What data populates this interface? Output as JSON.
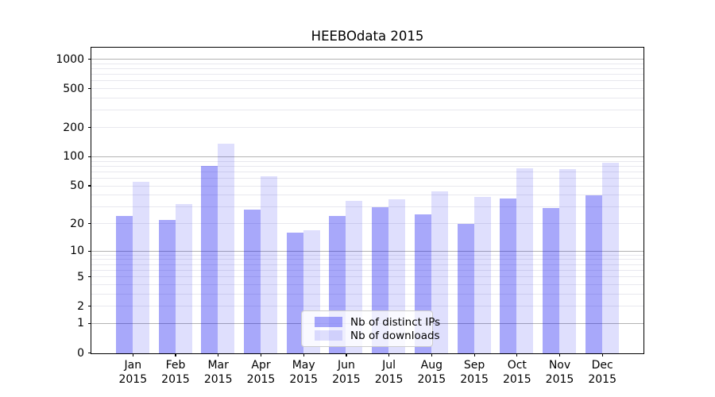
{
  "chart_data": {
    "type": "bar",
    "title": "HEEBOdata 2015",
    "categories": [
      "Jan",
      "Feb",
      "Mar",
      "Apr",
      "May",
      "Jun",
      "Jul",
      "Aug",
      "Sep",
      "Oct",
      "Nov",
      "Dec"
    ],
    "category_year": "2015",
    "series": [
      {
        "name": "Nb of distinct IPs",
        "color": "rgba(15,15,240,0.36)",
        "color_hex_on_white": "#a9a9fa",
        "values": [
          24,
          22,
          80,
          28,
          16,
          24,
          30,
          25,
          20,
          37,
          29,
          40
        ]
      },
      {
        "name": "Nb of downloads",
        "color": "rgba(15,15,240,0.135)",
        "color_hex_on_white": "#dfdffd",
        "values": [
          55,
          32,
          135,
          63,
          17,
          35,
          36,
          44,
          38,
          76,
          75,
          86
        ]
      }
    ],
    "xlabel": "",
    "ylabel": "",
    "yscale": "log10(1+value)",
    "ylim": [
      0,
      1300
    ],
    "yticks": [
      0,
      1,
      2,
      5,
      10,
      20,
      50,
      100,
      200,
      500,
      1000
    ],
    "grid": "on",
    "grid_major_at": [
      1,
      10,
      100,
      1000
    ],
    "grid_minor_rule": "2..9 per decade up to 900",
    "legend_position": "lower-center-inside",
    "colors": {
      "grid_major": "#b3b3b3",
      "grid_minor": "#e8e8ee",
      "spine": "#000000",
      "text": "#000000",
      "legend_border": "#cccccc"
    }
  }
}
